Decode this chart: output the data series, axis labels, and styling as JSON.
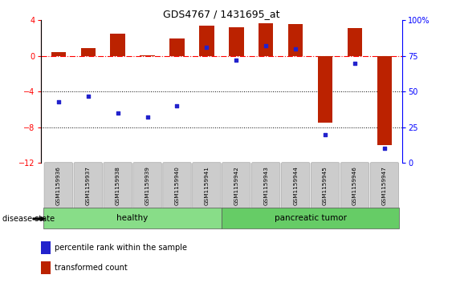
{
  "title": "GDS4767 / 1431695_at",
  "samples": [
    "GSM1159936",
    "GSM1159937",
    "GSM1159938",
    "GSM1159939",
    "GSM1159940",
    "GSM1159941",
    "GSM1159942",
    "GSM1159943",
    "GSM1159944",
    "GSM1159945",
    "GSM1159946",
    "GSM1159947"
  ],
  "red_bars": [
    0.45,
    0.9,
    2.5,
    0.1,
    2.0,
    3.4,
    3.2,
    3.7,
    3.6,
    -7.5,
    3.1,
    -10.0
  ],
  "blue_dots": [
    43,
    47,
    35,
    32,
    40,
    81,
    72,
    82,
    80,
    20,
    70,
    10
  ],
  "ylim_left": [
    -12,
    4
  ],
  "ylim_right": [
    0,
    100
  ],
  "yticks_left": [
    4,
    0,
    -4,
    -8,
    -12
  ],
  "yticks_right": [
    100,
    75,
    50,
    25,
    0
  ],
  "hlines": [
    -4,
    -8
  ],
  "bar_color": "#bb2200",
  "dot_color": "#2222cc",
  "bar_width": 0.5,
  "group_spans": [
    {
      "label": "healthy",
      "xstart": -0.5,
      "xend": 5.5,
      "color": "#88dd88"
    },
    {
      "label": "pancreatic tumor",
      "xstart": 5.5,
      "xend": 11.5,
      "color": "#66cc66"
    }
  ],
  "disease_label": "disease state",
  "legend_items": [
    {
      "label": "transformed count",
      "color": "#bb2200"
    },
    {
      "label": "percentile rank within the sample",
      "color": "#2222cc"
    }
  ],
  "background_color": "#ffffff"
}
